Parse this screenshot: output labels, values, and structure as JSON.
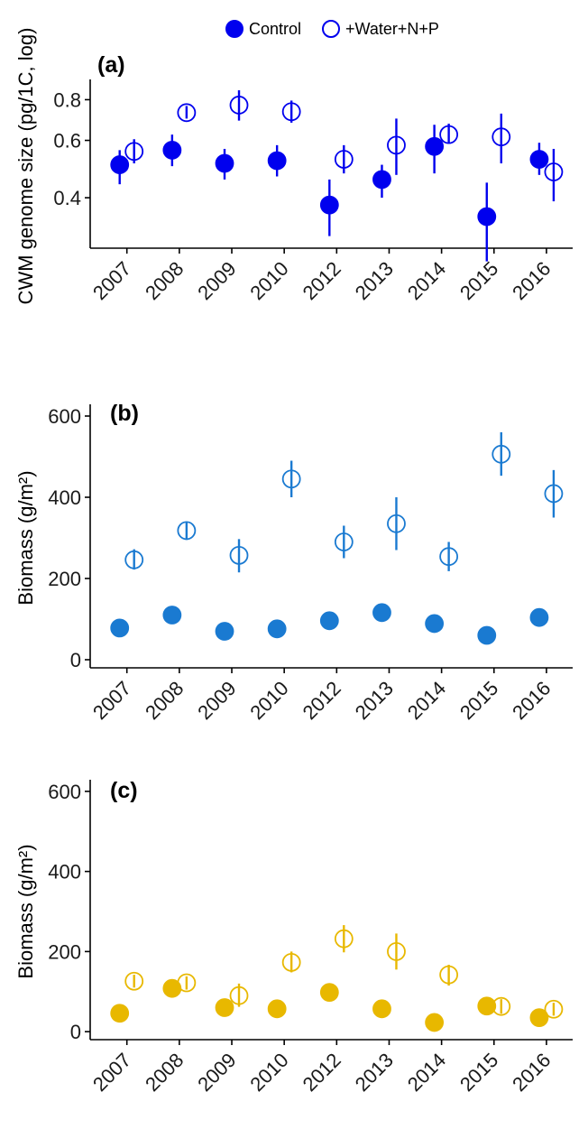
{
  "legend": {
    "control_label": "Control",
    "treatment_label": "+Water+N+P"
  },
  "chart_data": [
    {
      "type": "scatter",
      "panel_label": "(a)",
      "ylabel": "CWM genome size (pg/1C, log)",
      "xlabel": "",
      "y_scale": "log",
      "ylim": [
        0.28,
        0.9
      ],
      "yticks": [
        0.4,
        0.6,
        0.8
      ],
      "ytick_labels": [
        "0.4",
        "0.6",
        "0.8"
      ],
      "color": "#0000ee",
      "categories": [
        "2007",
        "2008",
        "2009",
        "2010",
        "2012",
        "2013",
        "2014",
        "2015",
        "2016"
      ],
      "series": [
        {
          "name": "Control",
          "marker": "filled",
          "values": [
            0.505,
            0.56,
            0.51,
            0.52,
            0.38,
            0.455,
            0.575,
            0.35,
            0.525
          ],
          "lower": [
            0.44,
            0.5,
            0.455,
            0.465,
            0.305,
            0.4,
            0.475,
            0.255,
            0.47
          ],
          "upper": [
            0.56,
            0.625,
            0.565,
            0.58,
            0.455,
            0.505,
            0.67,
            0.445,
            0.59
          ]
        },
        {
          "name": "+Water+N+P",
          "marker": "open",
          "values": [
            0.555,
            0.73,
            0.77,
            0.735,
            0.525,
            0.58,
            0.625,
            0.615,
            0.48
          ],
          "lower": [
            0.51,
            0.7,
            0.69,
            0.68,
            0.475,
            0.47,
            0.59,
            0.51,
            0.39
          ],
          "upper": [
            0.605,
            0.765,
            0.855,
            0.795,
            0.58,
            0.7,
            0.675,
            0.725,
            0.565
          ]
        }
      ]
    },
    {
      "type": "scatter",
      "panel_label": "(b)",
      "ylabel": "Biomass (g/m²)",
      "xlabel": "",
      "ylim": [
        -20,
        620
      ],
      "yticks": [
        0,
        200,
        400,
        600
      ],
      "ytick_labels": [
        "0",
        "200",
        "400",
        "600"
      ],
      "color": "#1a7ad1",
      "categories": [
        "2007",
        "2008",
        "2009",
        "2010",
        "2012",
        "2013",
        "2014",
        "2015",
        "2016"
      ],
      "series": [
        {
          "name": "Control",
          "marker": "filled",
          "values": [
            78,
            110,
            70,
            76,
            96,
            116,
            89,
            60,
            104
          ],
          "lower": [
            70,
            100,
            63,
            68,
            88,
            96,
            80,
            53,
            96
          ],
          "upper": [
            86,
            120,
            77,
            84,
            104,
            133,
            98,
            67,
            112
          ]
        },
        {
          "name": "+Water+N+P",
          "marker": "open",
          "values": [
            246,
            318,
            257,
            445,
            290,
            335,
            254,
            506,
            409
          ],
          "lower": [
            222,
            295,
            215,
            400,
            250,
            270,
            218,
            453,
            350
          ],
          "upper": [
            272,
            340,
            297,
            490,
            330,
            400,
            290,
            560,
            467
          ]
        }
      ]
    },
    {
      "type": "scatter",
      "panel_label": "(c)",
      "ylabel": "Biomass (g/m²)",
      "xlabel": "",
      "ylim": [
        -20,
        620
      ],
      "yticks": [
        0,
        200,
        400,
        600
      ],
      "ytick_labels": [
        "0",
        "200",
        "400",
        "600"
      ],
      "color": "#e8b800",
      "categories": [
        "2007",
        "2008",
        "2009",
        "2010",
        "2012",
        "2013",
        "2014",
        "2015",
        "2016"
      ],
      "series": [
        {
          "name": "Control",
          "marker": "filled",
          "values": [
            46,
            108,
            60,
            57,
            98,
            57,
            23,
            64,
            35
          ],
          "lower": [
            40,
            98,
            52,
            50,
            90,
            50,
            18,
            57,
            29
          ],
          "upper": [
            52,
            118,
            68,
            64,
            106,
            64,
            28,
            71,
            41
          ]
        },
        {
          "name": "+Water+N+P",
          "marker": "open",
          "values": [
            126,
            122,
            90,
            173,
            232,
            200,
            142,
            63,
            56
          ],
          "lower": [
            110,
            105,
            62,
            148,
            198,
            155,
            115,
            45,
            40
          ],
          "upper": [
            142,
            138,
            120,
            200,
            266,
            245,
            167,
            81,
            72
          ]
        }
      ]
    }
  ]
}
